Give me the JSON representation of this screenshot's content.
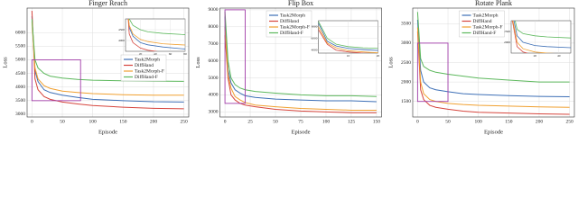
{
  "chart_data": [
    {
      "type": "line",
      "title": "Finger Reach",
      "xlabel": "Episode",
      "ylabel": "Loss",
      "legend": "upper right",
      "x": [
        0,
        5,
        10,
        20,
        30,
        50,
        75,
        100,
        150,
        200,
        250
      ],
      "xlim": [
        -8,
        258
      ],
      "xticks": [
        0,
        50,
        100,
        150,
        200,
        250
      ],
      "ylim": [
        2900,
        6900
      ],
      "yticks": [
        3000,
        3500,
        4000,
        4500,
        5000,
        5500,
        6000
      ],
      "series": [
        {
          "name": "Task2Morph",
          "color": "#3d6fb6",
          "values": [
            6600,
            4600,
            4200,
            3900,
            3800,
            3700,
            3620,
            3550,
            3500,
            3460,
            3450
          ]
        },
        {
          "name": "DiffHand",
          "color": "#d6453d",
          "values": [
            6800,
            4300,
            3900,
            3650,
            3550,
            3450,
            3380,
            3320,
            3260,
            3220,
            3200
          ]
        },
        {
          "name": "Task2Morph-F",
          "color": "#f0a030",
          "values": [
            6400,
            4700,
            4300,
            4050,
            3950,
            3850,
            3800,
            3760,
            3720,
            3700,
            3700
          ]
        },
        {
          "name": "DiffHand-F",
          "color": "#5cb85c",
          "values": [
            6500,
            5000,
            4700,
            4500,
            4400,
            4330,
            4280,
            4250,
            4230,
            4220,
            4210
          ]
        }
      ],
      "inset": {
        "xlim": [
          0,
          80
        ],
        "ylim": [
          3500,
          5000
        ],
        "xticks": [
          20,
          40,
          60,
          80
        ],
        "yticks": [
          4000,
          4500
        ]
      }
    },
    {
      "type": "line",
      "title": "Flip Box",
      "xlabel": "Episode",
      "ylabel": "Loss",
      "legend": "upper center",
      "x": [
        0,
        3,
        6,
        10,
        15,
        20,
        30,
        50,
        75,
        100,
        125,
        150
      ],
      "xlim": [
        -5,
        155
      ],
      "xticks": [
        0,
        25,
        50,
        75,
        100,
        125,
        150
      ],
      "ylim": [
        2700,
        9100
      ],
      "yticks": [
        3000,
        4000,
        5000,
        6000,
        7000,
        8000,
        9000
      ],
      "series": [
        {
          "name": "Task2Morph",
          "color": "#3d6fb6",
          "values": [
            8600,
            5500,
            4700,
            4300,
            4100,
            3950,
            3850,
            3750,
            3700,
            3650,
            3650,
            3600
          ]
        },
        {
          "name": "DiffHand",
          "color": "#d6453d",
          "values": [
            7500,
            5000,
            4000,
            3700,
            3500,
            3400,
            3300,
            3150,
            3050,
            3000,
            2950,
            2950
          ]
        },
        {
          "name": "Task2Morph-F",
          "color": "#f0a030",
          "values": [
            8000,
            5200,
            4400,
            3900,
            3700,
            3550,
            3400,
            3300,
            3200,
            3150,
            3100,
            3100
          ]
        },
        {
          "name": "DiffHand-F",
          "color": "#5cb85c",
          "values": [
            8900,
            6000,
            5000,
            4600,
            4400,
            4300,
            4200,
            4100,
            4000,
            3950,
            3950,
            3900
          ]
        }
      ],
      "inset": {
        "xlim": [
          0,
          20
        ],
        "ylim": [
          3500,
          9000
        ],
        "xticks": [
          10,
          20
        ],
        "yticks": [
          4000,
          6000,
          8000
        ]
      }
    },
    {
      "type": "line",
      "title": "Rotate Plank",
      "xlabel": "Episode",
      "ylabel": "Loss",
      "legend": "upper center",
      "x": [
        0,
        5,
        10,
        20,
        30,
        50,
        75,
        100,
        150,
        200,
        250
      ],
      "xlim": [
        -8,
        258
      ],
      "xticks": [
        0,
        50,
        100,
        150,
        200,
        250
      ],
      "ylim": [
        1100,
        3900
      ],
      "yticks": [
        1500,
        2000,
        2500,
        3000,
        3500
      ],
      "series": [
        {
          "name": "Task2Morph",
          "color": "#3d6fb6",
          "values": [
            3600,
            2300,
            2000,
            1850,
            1800,
            1750,
            1700,
            1680,
            1650,
            1630,
            1620
          ]
        },
        {
          "name": "DiffHand",
          "color": "#d6453d",
          "values": [
            3300,
            1800,
            1550,
            1400,
            1350,
            1300,
            1250,
            1220,
            1200,
            1180,
            1170
          ]
        },
        {
          "name": "Task2Morph-F",
          "color": "#f0a030",
          "values": [
            3400,
            2000,
            1700,
            1550,
            1500,
            1450,
            1420,
            1400,
            1380,
            1360,
            1350
          ]
        },
        {
          "name": "DiffHand-F",
          "color": "#5cb85c",
          "values": [
            3800,
            2600,
            2400,
            2300,
            2250,
            2200,
            2150,
            2100,
            2050,
            2000,
            2000
          ]
        }
      ],
      "inset": {
        "xlim": [
          0,
          50
        ],
        "ylim": [
          1500,
          3000
        ],
        "xticks": [
          20,
          40
        ],
        "yticks": [
          2000,
          2500
        ]
      }
    }
  ]
}
